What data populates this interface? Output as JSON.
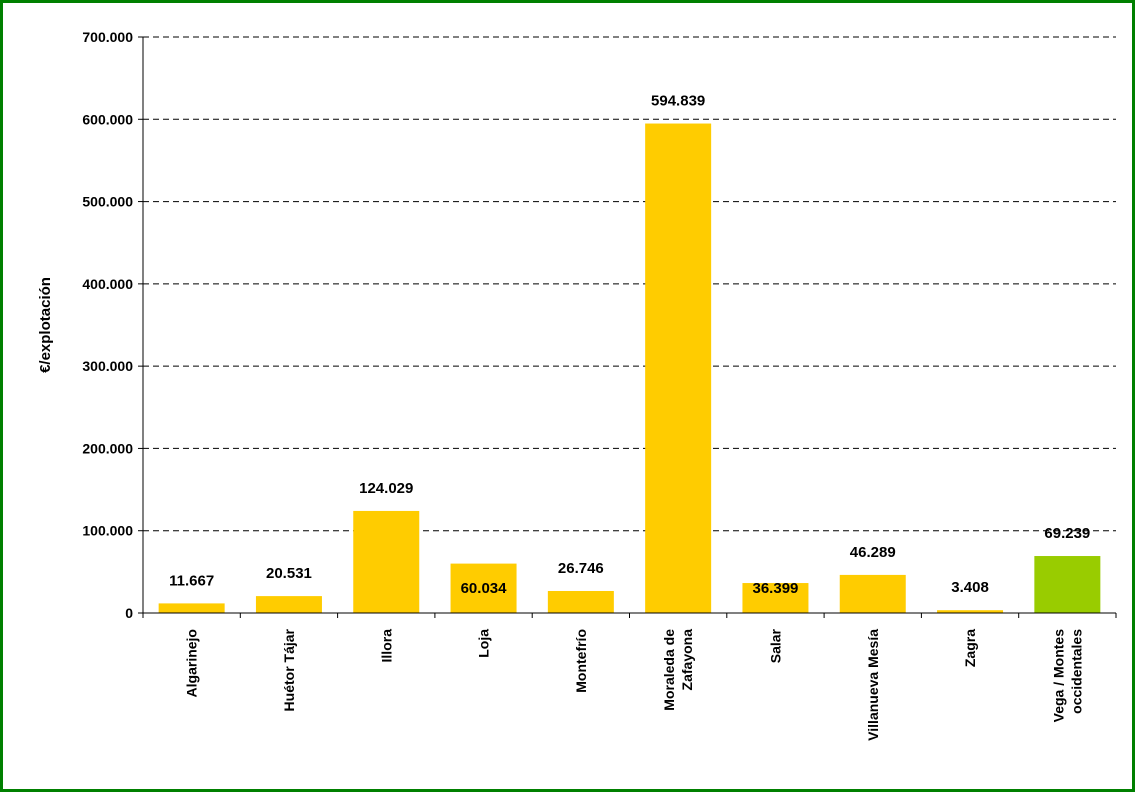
{
  "chart_data": {
    "type": "bar",
    "title": "",
    "xlabel": "",
    "ylabel": "€/explotación",
    "ylim": [
      0,
      700000
    ],
    "yticks": [
      0,
      100000,
      200000,
      300000,
      400000,
      500000,
      600000,
      700000
    ],
    "ytick_labels": [
      "0",
      "100.000",
      "200.000",
      "300.000",
      "400.000",
      "500.000",
      "600.000",
      "700.000"
    ],
    "grid": "horizontal dashed",
    "categories": [
      [
        "Algarinejo"
      ],
      [
        "Huétor Tájar"
      ],
      [
        "Illora"
      ],
      [
        "Loja"
      ],
      [
        "Montefrío"
      ],
      [
        "Moraleda de",
        "Zafayona"
      ],
      [
        "Salar"
      ],
      [
        "Villanueva Mesía"
      ],
      [
        "Zagra"
      ],
      [
        "Vega / Montes",
        "occidentales"
      ]
    ],
    "values": [
      11667,
      20531,
      124029,
      60034,
      26746,
      594839,
      36399,
      46289,
      3408,
      69239
    ],
    "value_labels": [
      "11.667",
      "20.531",
      "124.029",
      "60.034",
      "26.746",
      "594.839",
      "36.399",
      "46.289",
      "3.408",
      "69.239"
    ],
    "colors": [
      "#FFCC00",
      "#FFCC00",
      "#FFCC00",
      "#FFCC00",
      "#FFCC00",
      "#FFCC00",
      "#FFCC00",
      "#FFCC00",
      "#FFCC00",
      "#99CC00"
    ]
  }
}
